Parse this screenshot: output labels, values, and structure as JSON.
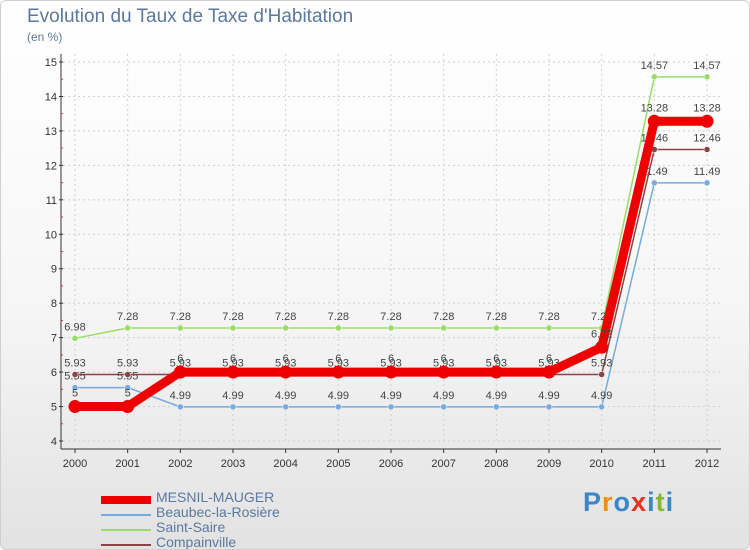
{
  "chart_data": {
    "type": "line",
    "title": "Evolution du Taux de Taxe d'Habitation",
    "subtitle": "(en %)",
    "xlabel": "",
    "ylabel": "",
    "ylim": [
      4,
      15
    ],
    "yticks": [
      4,
      5,
      6,
      7,
      8,
      9,
      10,
      11,
      12,
      13,
      14,
      15
    ],
    "categories": [
      "2000",
      "2001",
      "2002",
      "2003",
      "2004",
      "2005",
      "2006",
      "2007",
      "2008",
      "2009",
      "2010",
      "2011",
      "2012"
    ],
    "grid": true,
    "legend_position": "bottom-left",
    "series": [
      {
        "name": "Saint-Saire",
        "color": "#99dd66",
        "values": [
          6.98,
          7.28,
          7.28,
          7.28,
          7.28,
          7.28,
          7.28,
          7.28,
          7.28,
          7.28,
          7.28,
          14.57,
          14.57
        ],
        "labels": [
          "6.98",
          "7.28",
          "7.28",
          "7.28",
          "7.28",
          "7.28",
          "7.28",
          "7.28",
          "7.28",
          "7.28",
          "7.28",
          "14.57",
          "14.57"
        ]
      },
      {
        "name": "Beaubec-la-Rosière",
        "color": "#77aadd",
        "values": [
          5.55,
          5.55,
          4.99,
          4.99,
          4.99,
          4.99,
          4.99,
          4.99,
          4.99,
          4.99,
          4.99,
          11.49,
          11.49
        ],
        "labels": [
          "5.55",
          "5.55",
          "4.99",
          "4.99",
          "4.99",
          "4.99",
          "4.99",
          "4.99",
          "4.99",
          "4.99",
          "4.99",
          "11.49",
          "11.49"
        ]
      },
      {
        "name": "Compainville",
        "color": "#884444",
        "values": [
          5.93,
          5.93,
          5.93,
          5.93,
          5.93,
          5.93,
          5.93,
          5.93,
          5.93,
          5.93,
          5.93,
          12.46,
          12.46
        ],
        "labels": [
          "5.93",
          "5.93",
          "5.93",
          "5.93",
          "5.93",
          "5.93",
          "5.93",
          "5.93",
          "5.93",
          "5.93",
          "5.93",
          "12.46",
          "12.46"
        ]
      },
      {
        "name": "MESNIL-MAUGER",
        "color": "#ee0000",
        "values": [
          5,
          5,
          6,
          6,
          6,
          6,
          6,
          6,
          6,
          6,
          6.72,
          13.28,
          13.28
        ],
        "labels": [
          "5",
          "5",
          "6",
          "6",
          "6",
          "6",
          "6",
          "6",
          "6",
          "6",
          "6.72",
          "13.28",
          "13.28"
        ]
      }
    ],
    "legend_order": [
      "MESNIL-MAUGER",
      "Beaubec-la-Rosière",
      "Saint-Saire",
      "Compainville"
    ]
  },
  "logo": {
    "text": "Proxiti",
    "letters": [
      "P",
      "r",
      "o",
      "x",
      "i",
      "t",
      "i"
    ],
    "colors": [
      "#3a86c8",
      "#f08a1c",
      "#3a86c8",
      "#e53222",
      "#3a86c8",
      "#86b832",
      "#3a86c8"
    ]
  },
  "colors": {
    "text": "#5a78a0",
    "axis": "#333333",
    "grid": "#d0d0d0"
  }
}
